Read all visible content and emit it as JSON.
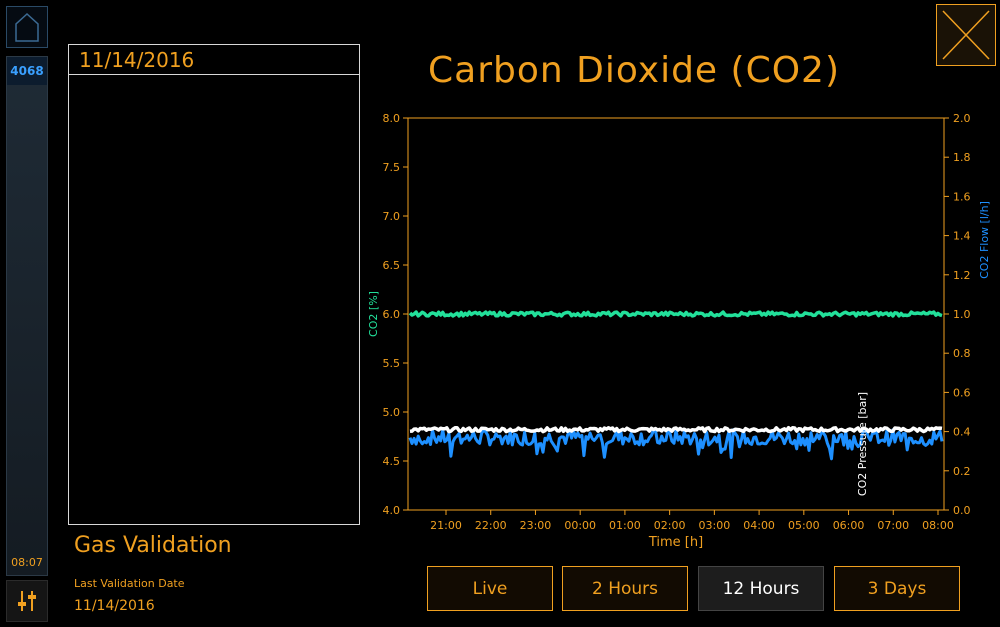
{
  "sidebar": {
    "badge": "4068",
    "time": "08:07",
    "home_icon": "home-icon",
    "settings_icon": "sliders-icon"
  },
  "panel": {
    "date": "11/14/2016"
  },
  "gas_validation": {
    "title": "Gas Validation",
    "subtitle": "Last Validation Date",
    "date": "11/14/2016"
  },
  "header": {
    "title": "Carbon Dioxide (CO2)",
    "close_icon": "close-icon"
  },
  "timeframe": {
    "buttons": [
      "Live",
      "2 Hours",
      "12 Hours",
      "3 Days"
    ],
    "selected": "12 Hours"
  },
  "colors": {
    "accent": "#f0a020",
    "co2": "#22e09a",
    "pressure": "#ffffff",
    "flow": "#1e90ff",
    "sidebar_badge": "#3aa0ff"
  },
  "chart_data": {
    "type": "line",
    "x_label": "Time [h]",
    "x_ticks": [
      "21:00",
      "22:00",
      "23:00",
      "00:00",
      "01:00",
      "02:00",
      "03:00",
      "04:00",
      "05:00",
      "06:00",
      "07:00",
      "08:00"
    ],
    "y_left": {
      "label": "CO2 [%]",
      "range": [
        4.0,
        8.0
      ],
      "ticks": [
        "4.0",
        "4.5",
        "5.0",
        "5.5",
        "6.0",
        "6.5",
        "7.0",
        "7.5",
        "8.0"
      ]
    },
    "y_right": {
      "labels": [
        "CO2 Pressure [bar]",
        "CO2 Flow [l/h]"
      ],
      "range": [
        0.0,
        2.0
      ],
      "ticks": [
        "0.0",
        "0.2",
        "0.4",
        "0.6",
        "0.8",
        "1.0",
        "1.2",
        "1.4",
        "1.6",
        "1.8",
        "2.0"
      ]
    },
    "series": [
      {
        "name": "CO2 [%]",
        "axis": "left",
        "approx_value": 6.0,
        "noise": 0.02
      },
      {
        "name": "CO2 Pressure [bar]",
        "axis": "right",
        "approx_value": 0.41,
        "noise": 0.01
      },
      {
        "name": "CO2 Flow [l/h]",
        "axis": "right",
        "approx_value": 0.37,
        "noise": 0.04
      }
    ]
  }
}
